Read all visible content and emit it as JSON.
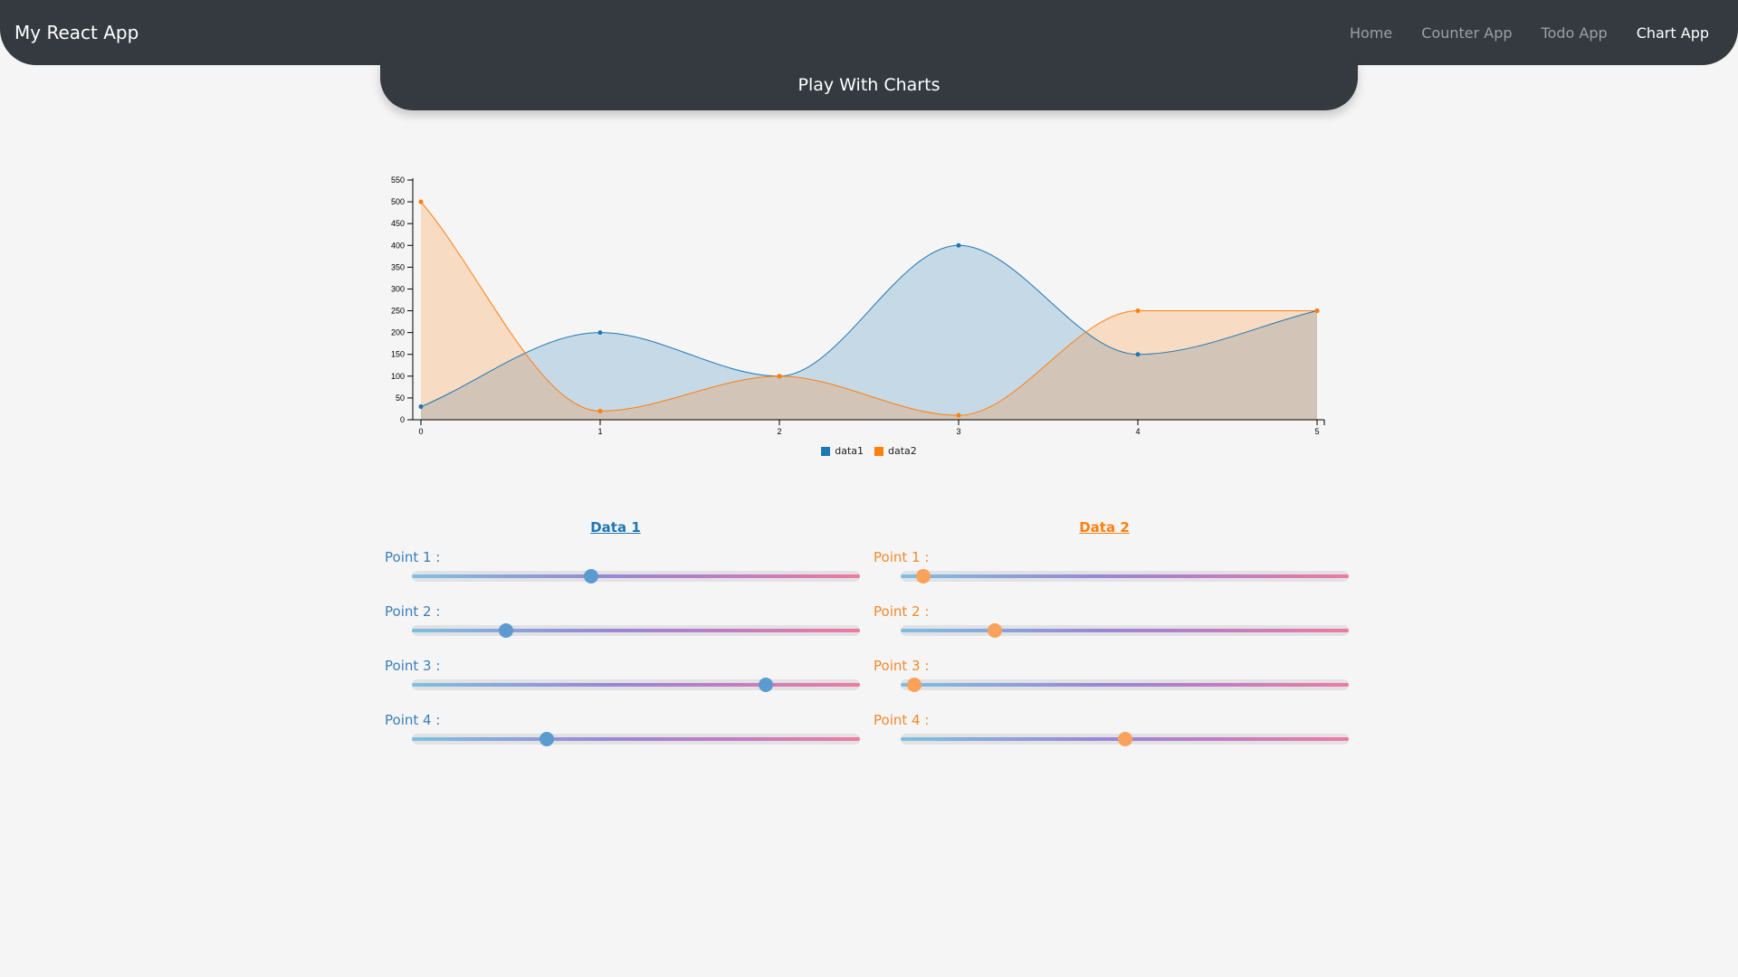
{
  "navbar": {
    "brand": "My React App",
    "links": [
      {
        "label": "Home",
        "active": false
      },
      {
        "label": "Counter App",
        "active": false
      },
      {
        "label": "Todo App",
        "active": false
      },
      {
        "label": "Chart App",
        "active": true
      }
    ]
  },
  "header": {
    "title": "Play With Charts"
  },
  "colors": {
    "data1": "#1f77b4",
    "data2": "#ff7f0e",
    "nav_bg": "#343a40"
  },
  "chart_data": {
    "type": "area",
    "x": [
      0,
      1,
      2,
      3,
      4,
      5
    ],
    "series": [
      {
        "name": "data1",
        "values": [
          30,
          200,
          100,
          400,
          150,
          250
        ]
      },
      {
        "name": "data2",
        "values": [
          500,
          20,
          100,
          10,
          250,
          250
        ]
      }
    ],
    "xlim": [
      0,
      5
    ],
    "ylim": [
      0,
      550
    ],
    "yticks": [
      0,
      50,
      100,
      150,
      200,
      250,
      300,
      350,
      400,
      450,
      500,
      550
    ],
    "xticks": [
      0,
      1,
      2,
      3,
      4,
      5
    ],
    "legend_position": "bottom-center",
    "grid": false
  },
  "controls": {
    "data1": {
      "title": "Data 1",
      "points": [
        {
          "label": "Point 1 :",
          "fraction": 0.4
        },
        {
          "label": "Point 2 :",
          "fraction": 0.21
        },
        {
          "label": "Point 3 :",
          "fraction": 0.79
        },
        {
          "label": "Point 4 :",
          "fraction": 0.3
        }
      ]
    },
    "data2": {
      "title": "Data 2",
      "points": [
        {
          "label": "Point 1 :",
          "fraction": 0.05
        },
        {
          "label": "Point 2 :",
          "fraction": 0.21
        },
        {
          "label": "Point 3 :",
          "fraction": 0.03
        },
        {
          "label": "Point 4 :",
          "fraction": 0.5
        }
      ]
    }
  }
}
